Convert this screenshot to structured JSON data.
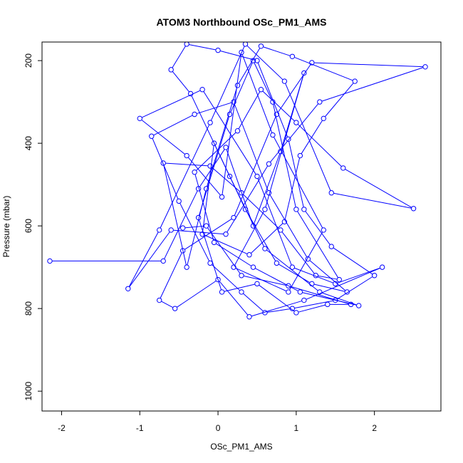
{
  "chart_data": {
    "type": "line",
    "title": "ATOM3 Northbound OSc_PM1_AMS",
    "xlabel": "OSc_PM1_AMS",
    "ylabel": "Pressure (mbar)",
    "xlim": [
      -2.25,
      2.85
    ],
    "ylim": [
      1048,
      155
    ],
    "y_reversed": true,
    "x_ticks": [
      -2,
      -1,
      0,
      1,
      2
    ],
    "y_ticks": [
      200,
      400,
      600,
      800,
      1000
    ],
    "grid": false,
    "series": [
      {
        "color": "#0000ff",
        "marker": "open-circle",
        "points": [
          [
            -2.15,
            685
          ],
          [
            -0.7,
            685
          ],
          [
            -0.25,
            510
          ],
          [
            0.1,
            410
          ],
          [
            0.45,
            600
          ],
          [
            0.8,
            420
          ],
          [
            1.1,
            230
          ],
          [
            0.6,
            560
          ],
          [
            0.2,
            700
          ],
          [
            0.9,
            760
          ],
          [
            1.35,
            610
          ],
          [
            0.7,
            380
          ],
          [
            0.3,
            180
          ],
          [
            0.05,
            530
          ],
          [
            -0.4,
            430
          ],
          [
            -1.0,
            340
          ],
          [
            -0.2,
            270
          ],
          [
            0.5,
            480
          ],
          [
            0.95,
            700
          ],
          [
            1.5,
            740
          ],
          [
            2.1,
            700
          ],
          [
            1.1,
            780
          ],
          [
            0.4,
            820
          ],
          [
            0.0,
            730
          ],
          [
            -0.55,
            800
          ],
          [
            -0.75,
            780
          ],
          [
            -0.45,
            660
          ],
          [
            0.2,
            580
          ],
          [
            0.75,
            330
          ],
          [
            1.2,
            205
          ],
          [
            2.65,
            215
          ],
          [
            1.3,
            300
          ],
          [
            0.65,
            450
          ],
          [
            0.1,
            620
          ],
          [
            -0.6,
            610
          ],
          [
            -1.15,
            752
          ],
          [
            -0.75,
            610
          ],
          [
            -0.1,
            350
          ],
          [
            0.35,
            160
          ],
          [
            0.85,
            250
          ],
          [
            1.45,
            520
          ],
          [
            2.5,
            558
          ],
          [
            1.6,
            460
          ],
          [
            1.0,
            350
          ],
          [
            0.55,
            270
          ],
          [
            0.25,
            370
          ],
          [
            -0.3,
            470
          ],
          [
            -0.05,
            640
          ],
          [
            0.45,
            700
          ],
          [
            1.05,
            760
          ],
          [
            1.8,
            793
          ],
          [
            1.3,
            760
          ],
          [
            0.6,
            655
          ],
          [
            0.15,
            480
          ],
          [
            -0.35,
            280
          ],
          [
            -0.6,
            222
          ],
          [
            -0.4,
            160
          ],
          [
            0.0,
            175
          ],
          [
            0.5,
            200
          ],
          [
            0.9,
            390
          ],
          [
            1.1,
            560
          ],
          [
            1.45,
            650
          ],
          [
            2.0,
            720
          ],
          [
            1.5,
            780
          ],
          [
            0.95,
            800
          ],
          [
            0.6,
            810
          ],
          [
            0.3,
            760
          ],
          [
            -0.1,
            690
          ],
          [
            -0.5,
            540
          ],
          [
            -0.85,
            383
          ],
          [
            -0.3,
            330
          ],
          [
            0.2,
            300
          ],
          [
            0.65,
            520
          ],
          [
            1.15,
            680
          ],
          [
            1.65,
            760
          ],
          [
            1.2,
            740
          ],
          [
            0.75,
            690
          ],
          [
            0.35,
            560
          ],
          [
            -0.05,
            400
          ],
          [
            -0.2,
            620
          ],
          [
            0.4,
            670
          ],
          [
            0.85,
            590
          ],
          [
            1.05,
            430
          ],
          [
            1.35,
            340
          ],
          [
            1.75,
            250
          ],
          [
            0.95,
            190
          ],
          [
            0.55,
            165
          ],
          [
            0.25,
            260
          ],
          [
            -0.15,
            510
          ],
          [
            -0.4,
            700
          ],
          [
            -0.7,
            448
          ],
          [
            -0.1,
            455
          ],
          [
            0.3,
            520
          ],
          [
            0.8,
            610
          ],
          [
            1.25,
            720
          ],
          [
            1.55,
            730
          ],
          [
            1.0,
            560
          ],
          [
            0.7,
            300
          ],
          [
            0.45,
            200
          ],
          [
            0.15,
            330
          ],
          [
            -0.25,
            580
          ],
          [
            0.05,
            760
          ],
          [
            0.5,
            740
          ],
          [
            1.0,
            810
          ],
          [
            1.4,
            790
          ],
          [
            1.7,
            790
          ],
          [
            0.9,
            745
          ],
          [
            0.3,
            720
          ],
          [
            -0.15,
            600
          ],
          [
            -0.45,
            605
          ]
        ]
      }
    ]
  }
}
